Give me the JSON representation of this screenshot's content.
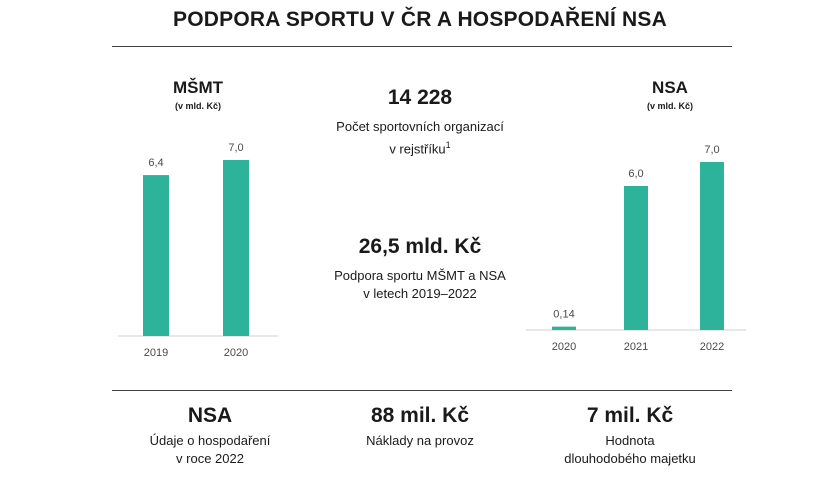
{
  "header": {
    "title": "PODPORA SPORTU V ČR A HOSPODAŘENÍ NSA"
  },
  "chart_data": [
    {
      "type": "bar",
      "title": "MŠMT",
      "subtitle": "(v mld. Kč)",
      "categories": [
        "2019",
        "2020"
      ],
      "values": [
        6.4,
        7.0
      ],
      "value_labels": [
        "6,4",
        "7,0"
      ],
      "ylim": [
        0,
        7.0
      ],
      "color": "#2db39a"
    },
    {
      "type": "bar",
      "title": "NSA",
      "subtitle": "(v mld. Kč)",
      "categories": [
        "2020",
        "2021",
        "2022"
      ],
      "values": [
        0.14,
        6.0,
        7.0
      ],
      "value_labels": [
        "0,14",
        "6,0",
        "7,0"
      ],
      "ylim": [
        0,
        7.0
      ],
      "color": "#2db39a"
    }
  ],
  "center": {
    "stat1": {
      "value": "14 228",
      "desc_line1": "Počet sportovních organizací",
      "desc_line2": "v rejstříku",
      "footnote": "1"
    },
    "stat2": {
      "value": "26,5 mld. Kč",
      "desc_line1": "Podpora sportu MŠMT a NSA",
      "desc_line2": "v letech 2019–2022"
    }
  },
  "bottom": [
    {
      "value": "NSA",
      "desc_line1": "Údaje o hospodaření",
      "desc_line2": "v roce 2022"
    },
    {
      "value": "88 mil. Kč",
      "desc_line1": "Náklady na provoz",
      "desc_line2": ""
    },
    {
      "value": "7 mil. Kč",
      "desc_line1": "Hodnota",
      "desc_line2": "dlouhodobého majetku"
    }
  ]
}
